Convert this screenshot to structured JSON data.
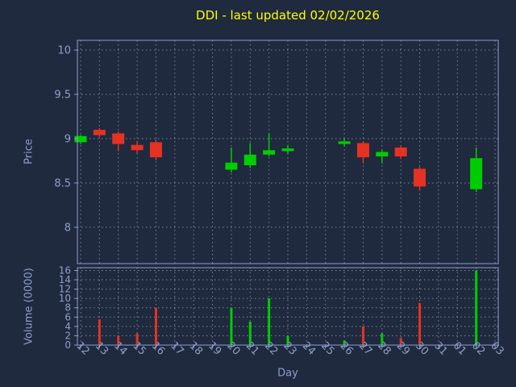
{
  "title": "DDI - last updated 02/02/2026",
  "colors": {
    "background": "#1f2a3e",
    "text": "#8e9fcb",
    "title": "#ffff00",
    "frame": "#8e9fcb",
    "grid": "#d7dff0",
    "up": "#00cd00",
    "down": "#e53222"
  },
  "chart_data": {
    "type": "candlestick",
    "title": "DDI - last updated 02/02/2026",
    "xlabel": "Day",
    "price_ylabel": "Price",
    "volume_ylabel": "Volume (0000)",
    "price_ylim": [
      7.59,
      10.11
    ],
    "price_ticks": [
      8,
      8.5,
      9,
      9.5,
      10
    ],
    "volume_ylim": [
      0,
      16.6
    ],
    "volume_ticks": [
      0,
      2,
      4,
      6,
      8,
      10,
      12,
      14,
      16
    ],
    "grid": true,
    "days": [
      {
        "label": "12",
        "open": 8.96,
        "high": 9.04,
        "low": 8.94,
        "close": 9.03,
        "volume": 0
      },
      {
        "label": "13",
        "open": 9.1,
        "high": 9.12,
        "low": 9.02,
        "close": 9.04,
        "volume": 5.5
      },
      {
        "label": "14",
        "open": 9.06,
        "high": 9.08,
        "low": 8.86,
        "close": 8.94,
        "volume": 2
      },
      {
        "label": "15",
        "open": 8.93,
        "high": 8.97,
        "low": 8.83,
        "close": 8.87,
        "volume": 2.5
      },
      {
        "label": "16",
        "open": 8.96,
        "high": 8.99,
        "low": 8.76,
        "close": 8.79,
        "volume": 8
      },
      {
        "label": "17",
        "open": null,
        "high": null,
        "low": null,
        "close": null,
        "volume": 0
      },
      {
        "label": "18",
        "open": null,
        "high": null,
        "low": null,
        "close": null,
        "volume": 0
      },
      {
        "label": "19",
        "open": null,
        "high": null,
        "low": null,
        "close": null,
        "volume": 0
      },
      {
        "label": "20",
        "open": 8.65,
        "high": 8.9,
        "low": 8.62,
        "close": 8.73,
        "volume": 8
      },
      {
        "label": "21",
        "open": 8.7,
        "high": 8.95,
        "low": 8.67,
        "close": 8.82,
        "volume": 5
      },
      {
        "label": "22",
        "open": 8.82,
        "high": 9.06,
        "low": 8.8,
        "close": 8.87,
        "volume": 10
      },
      {
        "label": "23",
        "open": 8.86,
        "high": 8.93,
        "low": 8.83,
        "close": 8.89,
        "volume": 2
      },
      {
        "label": "24",
        "open": null,
        "high": null,
        "low": null,
        "close": null,
        "volume": 0
      },
      {
        "label": "25",
        "open": null,
        "high": null,
        "low": null,
        "close": null,
        "volume": 0
      },
      {
        "label": "26",
        "open": 8.94,
        "high": 9.0,
        "low": 8.91,
        "close": 8.97,
        "volume": 1
      },
      {
        "label": "27",
        "open": 8.95,
        "high": 8.97,
        "low": 8.72,
        "close": 8.79,
        "volume": 4
      },
      {
        "label": "28",
        "open": 8.8,
        "high": 8.87,
        "low": 8.72,
        "close": 8.85,
        "volume": 2.5
      },
      {
        "label": "29",
        "open": 8.9,
        "high": 8.92,
        "low": 8.77,
        "close": 8.8,
        "volume": 1.5
      },
      {
        "label": "30",
        "open": 8.66,
        "high": 8.68,
        "low": 8.42,
        "close": 8.46,
        "volume": 9
      },
      {
        "label": "31",
        "open": null,
        "high": null,
        "low": null,
        "close": null,
        "volume": 0
      },
      {
        "label": "01",
        "open": null,
        "high": null,
        "low": null,
        "close": null,
        "volume": 0
      },
      {
        "label": "02",
        "open": 8.43,
        "high": 8.9,
        "low": 8.4,
        "close": 8.78,
        "volume": 16
      },
      {
        "label": "03",
        "open": null,
        "high": null,
        "low": null,
        "close": null,
        "volume": 0
      }
    ]
  }
}
